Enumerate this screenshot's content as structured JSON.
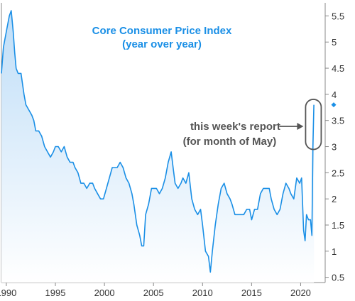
{
  "chart_data": {
    "type": "area",
    "title": "Core Consumer Price Index",
    "subtitle": "(year over year)",
    "xlabel": "",
    "ylabel": "",
    "xlim": [
      1989.5,
      2022.5
    ],
    "ylim": [
      0.4,
      5.75
    ],
    "x_ticks": [
      1990,
      1995,
      2000,
      2005,
      2010,
      2015,
      2020
    ],
    "y_ticks": [
      0.5,
      1,
      1.5,
      2,
      2.5,
      3,
      3.5,
      4,
      4.5,
      5,
      5.5
    ],
    "y_axis_position": "right",
    "grid": false,
    "last_value": 3.8,
    "series": [
      {
        "x": [
          1989.5,
          1989.7,
          1990.0,
          1990.3,
          1990.5,
          1990.7,
          1990.85,
          1991.0,
          1991.2,
          1991.5,
          1991.8,
          1992.0,
          1992.3,
          1992.6,
          1992.8,
          1993.0,
          1993.3,
          1993.6,
          1993.9,
          1994.2,
          1994.5,
          1994.8,
          1995.0,
          1995.3,
          1995.6,
          1995.9,
          1996.2,
          1996.5,
          1996.8,
          1997.0,
          1997.3,
          1997.6,
          1997.9,
          1998.2,
          1998.5,
          1998.8,
          1999.0,
          1999.3,
          1999.6,
          1999.9,
          2000.2,
          2000.5,
          2000.8,
          2001.0,
          2001.3,
          2001.6,
          2001.9,
          2002.2,
          2002.5,
          2002.8,
          2003.0,
          2003.3,
          2003.6,
          2003.8,
          2004.0,
          2004.2,
          2004.5,
          2004.8,
          2005.0,
          2005.3,
          2005.6,
          2005.9,
          2006.2,
          2006.5,
          2006.8,
          2007.0,
          2007.2,
          2007.5,
          2007.8,
          2008.0,
          2008.3,
          2008.6,
          2008.9,
          2009.2,
          2009.5,
          2009.8,
          2010.0,
          2010.3,
          2010.6,
          2010.8,
          2011.0,
          2011.3,
          2011.6,
          2011.9,
          2012.2,
          2012.5,
          2012.8,
          2013.0,
          2013.3,
          2013.6,
          2013.9,
          2014.2,
          2014.5,
          2014.8,
          2015.0,
          2015.3,
          2015.6,
          2015.9,
          2016.2,
          2016.5,
          2016.8,
          2017.0,
          2017.3,
          2017.6,
          2017.9,
          2018.2,
          2018.5,
          2018.8,
          2019.0,
          2019.3,
          2019.6,
          2019.9,
          2020.1,
          2020.3,
          2020.45,
          2020.6,
          2020.8,
          2021.0,
          2021.15,
          2021.25,
          2021.35
        ],
        "y": [
          4.4,
          4.9,
          5.2,
          5.5,
          5.6,
          5.2,
          4.8,
          4.5,
          4.4,
          4.4,
          4.0,
          3.8,
          3.7,
          3.6,
          3.5,
          3.3,
          3.3,
          3.2,
          3.0,
          2.9,
          2.8,
          2.9,
          3.0,
          3.0,
          2.9,
          3.0,
          2.8,
          2.7,
          2.7,
          2.6,
          2.5,
          2.3,
          2.3,
          2.2,
          2.3,
          2.3,
          2.2,
          2.1,
          2.0,
          2.0,
          2.2,
          2.4,
          2.6,
          2.6,
          2.6,
          2.7,
          2.6,
          2.4,
          2.3,
          2.1,
          1.9,
          1.5,
          1.3,
          1.1,
          1.1,
          1.7,
          1.9,
          2.2,
          2.2,
          2.2,
          2.1,
          2.2,
          2.4,
          2.7,
          2.9,
          2.6,
          2.3,
          2.2,
          2.3,
          2.4,
          2.3,
          2.5,
          2.0,
          1.8,
          1.7,
          1.8,
          1.5,
          1.0,
          0.9,
          0.6,
          1.0,
          1.5,
          1.9,
          2.2,
          2.3,
          2.1,
          2.0,
          1.9,
          1.7,
          1.7,
          1.7,
          1.7,
          1.8,
          1.8,
          1.6,
          1.8,
          1.8,
          2.1,
          2.2,
          2.2,
          2.2,
          2.0,
          1.8,
          1.7,
          1.8,
          2.1,
          2.3,
          2.2,
          2.1,
          2.0,
          2.4,
          2.3,
          2.4,
          1.4,
          1.2,
          1.7,
          1.6,
          1.6,
          1.3,
          3.0,
          3.8
        ]
      }
    ],
    "annotations": [
      {
        "line1": "this week's report",
        "line2": "(for month of May)",
        "target_x": 2021.3,
        "target_y_min": 3.0,
        "target_y_max": 3.85
      }
    ],
    "colors": {
      "line": "#1a8fe6",
      "fill_top": "#bcdcf7",
      "fill_bottom": "#ffffff",
      "axis": "#888888",
      "annotation": "#555555",
      "title": "#1a8fe6"
    }
  }
}
